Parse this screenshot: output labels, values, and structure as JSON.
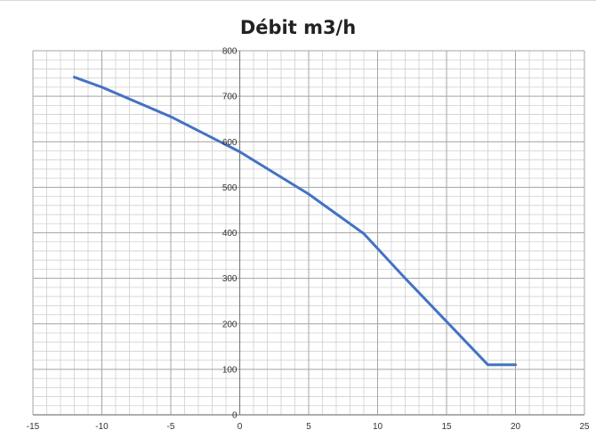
{
  "chart_data": {
    "type": "line",
    "title": "Débit m3/h",
    "xlabel": "",
    "ylabel": "",
    "xlim": [
      -15,
      25
    ],
    "ylim": [
      0,
      800
    ],
    "x_ticks": [
      "-15",
      "-10",
      "-5",
      "0",
      "5",
      "10",
      "15",
      "20",
      "25"
    ],
    "y_ticks": [
      "0",
      "100",
      "200",
      "300",
      "400",
      "500",
      "600",
      "700",
      "800"
    ],
    "grid": true,
    "series": [
      {
        "x": [
          -12,
          -10,
          -5,
          0,
          5,
          9,
          12,
          15,
          18,
          20
        ],
        "values": [
          742,
          720,
          655,
          578,
          485,
          398,
          300,
          205,
          110,
          110
        ]
      }
    ],
    "colors": {
      "line": "#4472c4",
      "major_grid": "#a6a6a6",
      "minor_grid": "#d0d0d0",
      "axis": "#7f7f7f"
    }
  }
}
